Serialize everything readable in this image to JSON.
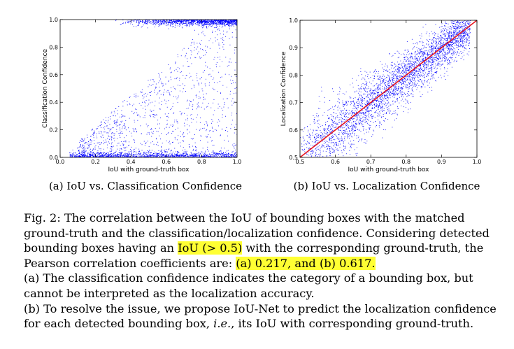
{
  "chart_data": [
    {
      "type": "scatter",
      "xlabel": "IoU with ground-truth box",
      "ylabel": "Classification Confidence",
      "xlim": [
        0.0,
        1.0
      ],
      "ylim": [
        0.0,
        1.0
      ],
      "xticks": [
        "0.0",
        "0.2",
        "0.4",
        "0.6",
        "0.8",
        "1.0"
      ],
      "yticks": [
        "0.0",
        "0.2",
        "0.4",
        "0.6",
        "0.8",
        "1.0"
      ],
      "point_color": "#0000ff",
      "grid": false,
      "subcaption": "(a) IoU vs. Classification Confidence"
    },
    {
      "type": "scatter",
      "xlabel": "IoU with ground-truth box",
      "ylabel": "Localization Confidence",
      "xlim": [
        0.5,
        1.0
      ],
      "ylim": [
        0.5,
        1.0
      ],
      "xticks": [
        "0.5",
        "0.6",
        "0.7",
        "0.8",
        "0.9",
        "1.0"
      ],
      "yticks": [
        "0.5",
        "0.6",
        "0.7",
        "0.8",
        "0.9",
        "1.0"
      ],
      "point_color": "#0000ff",
      "fit_line": {
        "x": [
          0.5,
          1.0
        ],
        "y": [
          0.5,
          1.0
        ],
        "color": "#e8141e"
      },
      "grid": false,
      "subcaption": "(b) IoU vs. Localization Confidence"
    }
  ],
  "caption": {
    "p1_a": "Fig. 2: The correlation between the IoU of bounding boxes with the matched ground-truth and the classification/localization confidence. Considering detected bounding boxes having an ",
    "p1_hl1": "IoU (> 0.5)",
    "p1_b": " with the corresponding ground-truth, the Pearson correlation coefficients are: ",
    "p1_hl2": "(a) 0.217, and (b) 0.617.",
    "p2": "(a) The classification confidence indicates the category of a bounding box, but cannot be interpreted as the localization accuracy.",
    "p3_a": "(b) To resolve the issue, we propose IoU-Net to predict the localization confidence for each detected bounding box, ",
    "p3_ie": "i.e.",
    "p3_b": ", its IoU with corresponding ground-truth."
  }
}
